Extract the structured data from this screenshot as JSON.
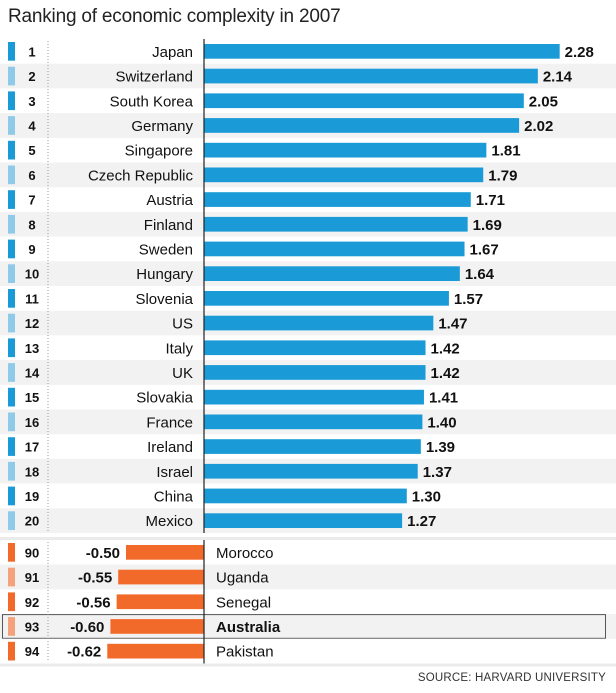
{
  "title": "Ranking of economic complexity in 2007",
  "source": "SOURCE: HARVARD UNIVERSITY",
  "colors": {
    "positive_bar": "#1a9ad6",
    "negative_bar": "#f26a2a",
    "positive_stripe_dark": "#1a9ad6",
    "positive_stripe_light": "#8fcbe8",
    "negative_stripe_dark": "#f26a2a",
    "negative_stripe_light": "#f5a27c",
    "row_alt": "#f2f2f2",
    "bottom_background": "#ebebeb"
  },
  "chart_data": {
    "type": "bar",
    "orientation": "horizontal",
    "title": "Ranking of economic complexity in 2007",
    "highlight": "Australia",
    "top": [
      {
        "rank": "1",
        "country": "Japan",
        "value": 2.28
      },
      {
        "rank": "2",
        "country": "Switzerland",
        "value": 2.14
      },
      {
        "rank": "3",
        "country": "South Korea",
        "value": 2.05
      },
      {
        "rank": "4",
        "country": "Germany",
        "value": 2.02
      },
      {
        "rank": "5",
        "country": "Singapore",
        "value": 1.81
      },
      {
        "rank": "6",
        "country": "Czech Republic",
        "value": 1.79
      },
      {
        "rank": "7",
        "country": "Austria",
        "value": 1.71
      },
      {
        "rank": "8",
        "country": "Finland",
        "value": 1.69
      },
      {
        "rank": "9",
        "country": "Sweden",
        "value": 1.67
      },
      {
        "rank": "10",
        "country": "Hungary",
        "value": 1.64
      },
      {
        "rank": "11",
        "country": "Slovenia",
        "value": 1.57
      },
      {
        "rank": "12",
        "country": "US",
        "value": 1.47
      },
      {
        "rank": "13",
        "country": "Italy",
        "value": 1.42
      },
      {
        "rank": "14",
        "country": "UK",
        "value": 1.42
      },
      {
        "rank": "15",
        "country": "Slovakia",
        "value": 1.41
      },
      {
        "rank": "16",
        "country": "France",
        "value": 1.4
      },
      {
        "rank": "17",
        "country": "Ireland",
        "value": 1.39
      },
      {
        "rank": "18",
        "country": "Israel",
        "value": 1.37
      },
      {
        "rank": "19",
        "country": "China",
        "value": 1.3
      },
      {
        "rank": "20",
        "country": "Mexico",
        "value": 1.27
      }
    ],
    "bottom": [
      {
        "rank": "90",
        "country": "Morocco",
        "value": -0.5
      },
      {
        "rank": "91",
        "country": "Uganda",
        "value": -0.55
      },
      {
        "rank": "92",
        "country": "Senegal",
        "value": -0.56
      },
      {
        "rank": "93",
        "country": "Australia",
        "value": -0.6
      },
      {
        "rank": "94",
        "country": "Pakistan",
        "value": -0.62
      }
    ]
  }
}
